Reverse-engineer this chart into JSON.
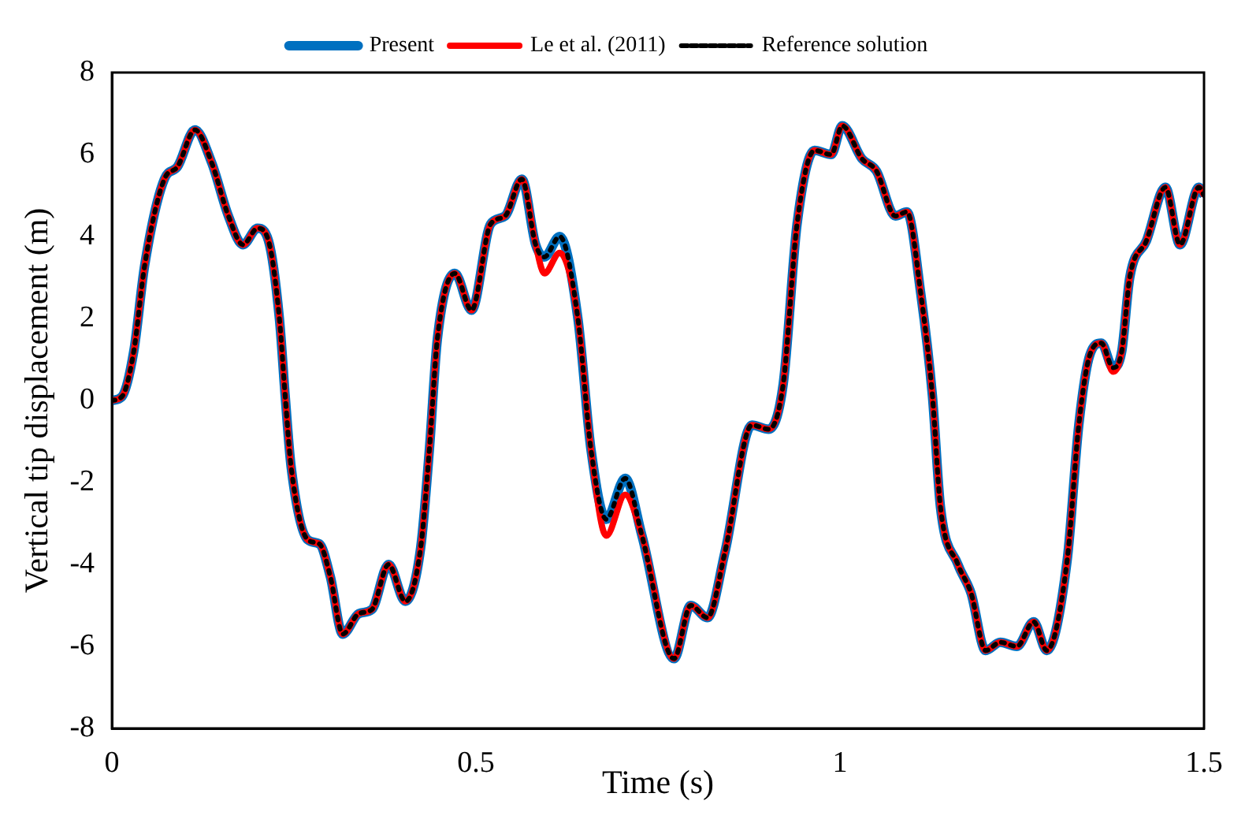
{
  "chart_data": {
    "type": "line",
    "xlabel": "Time (s)",
    "ylabel": "Vertical tip displacement (m)",
    "x": [
      0,
      0.014,
      0.03,
      0.045,
      0.072,
      0.09,
      0.114,
      0.137,
      0.16,
      0.18,
      0.2,
      0.215,
      0.23,
      0.238,
      0.246,
      0.269,
      0.285,
      0.3,
      0.317,
      0.339,
      0.357,
      0.38,
      0.403,
      0.424,
      0.436,
      0.447,
      0.471,
      0.494,
      0.52,
      0.54,
      0.563,
      0.582,
      0.594,
      0.615,
      0.64,
      0.658,
      0.679,
      0.705,
      0.728,
      0.772,
      0.795,
      0.818,
      0.842,
      0.879,
      0.902,
      0.922,
      0.941,
      0.965,
      0.988,
      1.003,
      1.03,
      1.05,
      1.076,
      1.092,
      1.111,
      1.127,
      1.138,
      1.162,
      1.18,
      1.2,
      1.22,
      1.243,
      1.266,
      1.284,
      1.312,
      1.328,
      1.343,
      1.359,
      1.375,
      1.387,
      1.398,
      1.421,
      1.447,
      1.467,
      1.493,
      1.5
    ],
    "series": [
      {
        "name": "Present",
        "color": "#0070c0",
        "line_style": "solid",
        "values": [
          0,
          0.1,
          1.2,
          3.3,
          5.4,
          5.7,
          6.6,
          5.8,
          4.5,
          3.8,
          4.2,
          3.9,
          2.0,
          0.1,
          -1.6,
          -3.4,
          -3.5,
          -4.3,
          -5.7,
          -5.2,
          -5.1,
          -4.0,
          -4.9,
          -3.6,
          -1.2,
          1.5,
          3.1,
          2.2,
          4.3,
          4.5,
          5.4,
          3.8,
          3.5,
          4.0,
          2.0,
          -1.2,
          -2.9,
          -1.9,
          -3.3,
          -6.3,
          -5.0,
          -5.3,
          -3.7,
          -0.6,
          -0.7,
          0.4,
          4.3,
          6.1,
          6.0,
          6.7,
          5.9,
          5.6,
          4.5,
          4.6,
          2.6,
          0.1,
          -2.6,
          -4.0,
          -4.7,
          -6.1,
          -5.9,
          -6.0,
          -5.4,
          -6.1,
          -3.9,
          -0.6,
          1.1,
          1.4,
          0.8,
          1.2,
          3.0,
          3.9,
          5.2,
          3.8,
          5.2,
          5.0
        ]
      },
      {
        "name": "Le et al. (2011)",
        "color": "#ff0000",
        "line_style": "solid",
        "values": [
          0,
          0.1,
          1.2,
          3.3,
          5.4,
          5.7,
          6.6,
          5.8,
          4.5,
          3.8,
          4.2,
          3.9,
          2.0,
          0.1,
          -1.6,
          -3.4,
          -3.5,
          -4.3,
          -5.7,
          -5.2,
          -5.1,
          -4.0,
          -4.9,
          -3.6,
          -1.2,
          1.5,
          3.1,
          2.2,
          4.3,
          4.5,
          5.4,
          3.8,
          3.1,
          3.6,
          2.0,
          -1.2,
          -3.3,
          -2.3,
          -3.3,
          -6.3,
          -5.0,
          -5.3,
          -3.7,
          -0.6,
          -0.7,
          0.4,
          4.3,
          6.1,
          6.0,
          6.7,
          5.9,
          5.6,
          4.5,
          4.6,
          2.6,
          0.1,
          -2.6,
          -4.0,
          -4.7,
          -6.1,
          -5.9,
          -6.0,
          -5.4,
          -6.1,
          -3.9,
          -0.6,
          1.1,
          1.4,
          0.7,
          1.2,
          3.0,
          3.9,
          5.2,
          3.8,
          5.2,
          5.0
        ]
      },
      {
        "name": "Reference solution",
        "color": "#000000",
        "line_style": "dotted",
        "values": [
          0,
          0.1,
          1.2,
          3.3,
          5.4,
          5.7,
          6.6,
          5.8,
          4.5,
          3.8,
          4.2,
          3.9,
          2.0,
          0.1,
          -1.6,
          -3.4,
          -3.5,
          -4.3,
          -5.7,
          -5.2,
          -5.1,
          -4.0,
          -4.9,
          -3.6,
          -1.2,
          1.5,
          3.1,
          2.2,
          4.3,
          4.5,
          5.4,
          3.8,
          3.5,
          4.0,
          2.0,
          -1.2,
          -2.9,
          -1.9,
          -3.3,
          -6.3,
          -5.0,
          -5.3,
          -3.7,
          -0.6,
          -0.7,
          0.4,
          4.3,
          6.1,
          6.0,
          6.7,
          5.9,
          5.6,
          4.5,
          4.6,
          2.6,
          0.1,
          -2.6,
          -4.0,
          -4.7,
          -6.1,
          -5.9,
          -6.0,
          -5.4,
          -6.1,
          -3.9,
          -0.6,
          1.1,
          1.4,
          0.8,
          1.2,
          3.0,
          3.9,
          5.2,
          3.8,
          5.2,
          5.0
        ]
      }
    ],
    "xlim": [
      0,
      1.5
    ],
    "xticks": [
      0,
      {
        "value": 0.5,
        "label": "0.5"
      },
      1,
      {
        "value": 1.5,
        "label": "1.5"
      }
    ],
    "ylim": [
      -8,
      8
    ],
    "yticks": [
      -8,
      -6,
      -4,
      -2,
      0,
      2,
      4,
      6,
      8
    ],
    "legend": "top",
    "marker": "none"
  }
}
